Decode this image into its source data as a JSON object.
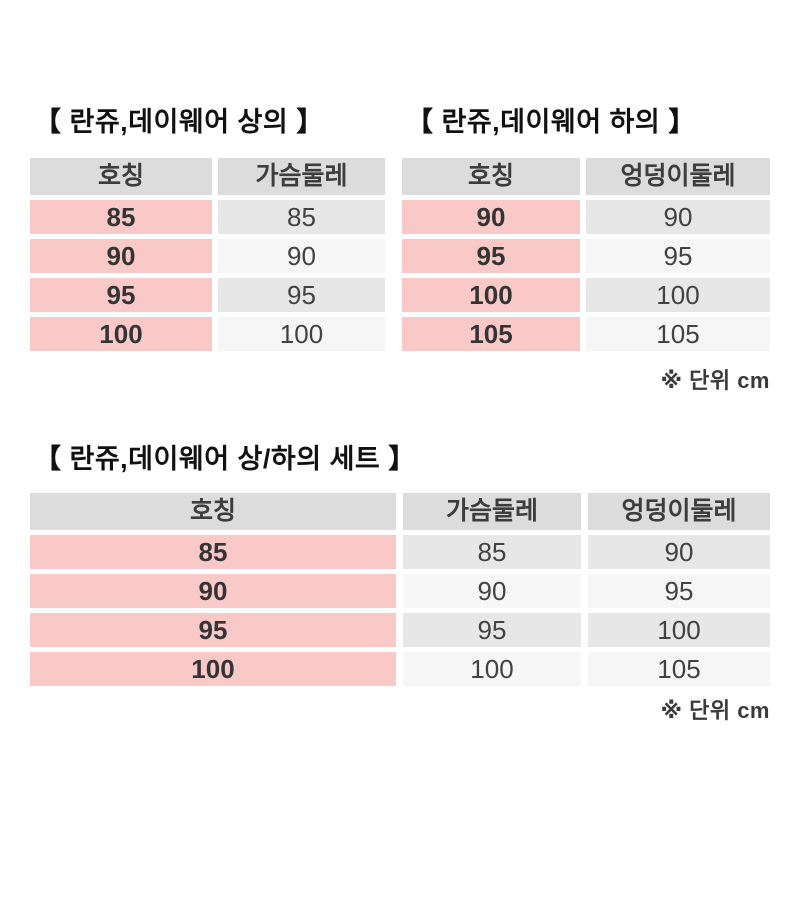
{
  "colors": {
    "accent_pink": "#f9c9c8",
    "header_gray": "#dcdcdc",
    "row_gray": "#e7e7e7",
    "row_light": "#f6f6f6",
    "text_dark": "#343434"
  },
  "unit_note": "※ 단위 cm",
  "tables": {
    "tops": {
      "title": "【 란쥬,데이웨어 상의 】",
      "headers": [
        "호칭",
        "가슴둘레"
      ],
      "rows": [
        [
          "85",
          "85"
        ],
        [
          "90",
          "90"
        ],
        [
          "95",
          "95"
        ],
        [
          "100",
          "100"
        ]
      ]
    },
    "bottoms": {
      "title": "【 란쥬,데이웨어 하의 】",
      "headers": [
        "호칭",
        "엉덩이둘레"
      ],
      "rows": [
        [
          "90",
          "90"
        ],
        [
          "95",
          "95"
        ],
        [
          "100",
          "100"
        ],
        [
          "105",
          "105"
        ]
      ]
    },
    "set": {
      "title": "【 란쥬,데이웨어 상/하의 세트 】",
      "headers": [
        "호칭",
        "가슴둘레",
        "엉덩이둘레"
      ],
      "rows": [
        [
          "85",
          "85",
          "90"
        ],
        [
          "90",
          "90",
          "95"
        ],
        [
          "95",
          "95",
          "100"
        ],
        [
          "100",
          "100",
          "105"
        ]
      ]
    }
  }
}
